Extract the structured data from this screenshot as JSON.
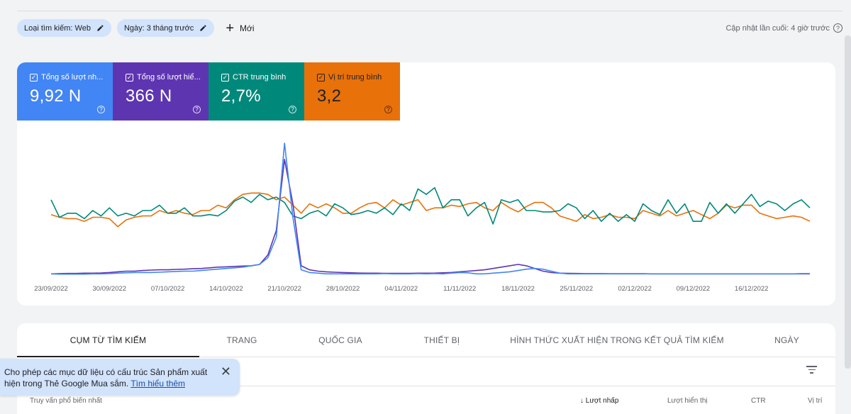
{
  "filters": {
    "search_type": "Loại tìm kiếm: Web",
    "date": "Ngày: 3 tháng trước",
    "new_label": "Mới"
  },
  "last_updated": "Cập nhật lần cuối: 4 giờ trước",
  "metrics": [
    {
      "label": "Tổng số lượt nh...",
      "value": "9,92 N",
      "color": "#4285f4"
    },
    {
      "label": "Tổng số lượt hiể...",
      "value": "366 N",
      "color": "#5e35b1"
    },
    {
      "label": "CTR trung bình",
      "value": "2,7%",
      "color": "#00897b"
    },
    {
      "label": "Vị trí trung bình",
      "value": "3,2",
      "color": "#e8710a"
    }
  ],
  "chart_data": {
    "type": "line",
    "x_tick_labels": [
      "23/09/2022",
      "30/09/2022",
      "07/10/2022",
      "14/10/2022",
      "21/10/2022",
      "28/10/2022",
      "04/11/2022",
      "11/11/2022",
      "18/11/2022",
      "25/11/2022",
      "02/12/2022",
      "09/12/2022",
      "16/12/2022"
    ],
    "x_start": "2022-09-23",
    "y_axis_labels_shown": false,
    "gridlines": false,
    "series": [
      {
        "name": "Tổng số lượt nh...",
        "color": "#4285f4",
        "values": [
          0.03,
          0.028,
          0.028,
          0.028,
          0.028,
          0.03,
          0.03,
          0.032,
          0.035,
          0.038,
          0.04,
          0.04,
          0.04,
          0.042,
          0.045,
          0.048,
          0.05,
          0.05,
          0.055,
          0.06,
          0.065,
          0.07,
          0.075,
          0.08,
          0.09,
          0.1,
          0.15,
          0.3,
          1.0,
          0.45,
          0.06,
          0.04,
          0.035,
          0.03,
          0.03,
          0.03,
          0.03,
          0.03,
          0.03,
          0.03,
          0.032,
          0.03,
          0.03,
          0.03,
          0.032,
          0.03,
          0.032,
          0.03,
          0.035,
          0.04,
          0.038,
          0.03,
          0.03,
          0.035,
          0.04,
          0.045,
          0.055,
          0.065,
          0.07,
          0.065,
          0.05,
          0.035,
          0.03,
          0.03,
          0.03,
          0.03,
          0.03,
          0.03,
          0.03,
          0.03,
          0.03,
          0.03,
          0.03,
          0.03,
          0.03,
          0.03,
          0.03,
          0.03,
          0.03,
          0.03,
          0.03,
          0.03,
          0.03,
          0.03,
          0.03,
          0.03,
          0.03,
          0.03,
          0.03,
          0.03,
          0.032,
          0.032
        ]
      },
      {
        "name": "Tổng số lượt hiể...",
        "color": "#5e35b1",
        "values": [
          0.03,
          0.032,
          0.033,
          0.033,
          0.035,
          0.035,
          0.037,
          0.04,
          0.045,
          0.05,
          0.05,
          0.055,
          0.058,
          0.06,
          0.06,
          0.063,
          0.065,
          0.068,
          0.07,
          0.075,
          0.08,
          0.082,
          0.085,
          0.088,
          0.09,
          0.1,
          0.17,
          0.35,
          0.88,
          0.55,
          0.09,
          0.06,
          0.05,
          0.045,
          0.042,
          0.04,
          0.038,
          0.036,
          0.035,
          0.035,
          0.034,
          0.034,
          0.034,
          0.034,
          0.035,
          0.035,
          0.036,
          0.038,
          0.04,
          0.045,
          0.05,
          0.055,
          0.06,
          0.07,
          0.08,
          0.09,
          0.1,
          0.09,
          0.07,
          0.05,
          0.04,
          0.035,
          0.034,
          0.033,
          0.032,
          0.032,
          0.032,
          0.031,
          0.031,
          0.031,
          0.031,
          0.031,
          0.03,
          0.03,
          0.03,
          0.03,
          0.03,
          0.03,
          0.03,
          0.03,
          0.03,
          0.03,
          0.03,
          0.03,
          0.03,
          0.03,
          0.03,
          0.03,
          0.03,
          0.03,
          0.03,
          0.03
        ]
      },
      {
        "name": "CTR trung bình",
        "color": "#00897b",
        "values": [
          0.58,
          0.45,
          0.48,
          0.48,
          0.44,
          0.5,
          0.46,
          0.52,
          0.46,
          0.48,
          0.46,
          0.5,
          0.5,
          0.54,
          0.48,
          0.48,
          0.52,
          0.46,
          0.46,
          0.47,
          0.46,
          0.5,
          0.57,
          0.6,
          0.56,
          0.62,
          0.58,
          0.6,
          0.56,
          0.46,
          0.44,
          0.48,
          0.5,
          0.46,
          0.55,
          0.52,
          0.47,
          0.48,
          0.5,
          0.48,
          0.52,
          0.47,
          0.55,
          0.5,
          0.66,
          0.62,
          0.67,
          0.52,
          0.58,
          0.58,
          0.46,
          0.52,
          0.56,
          0.4,
          0.58,
          0.56,
          0.58,
          0.5,
          0.5,
          0.49,
          0.49,
          0.5,
          0.55,
          0.52,
          0.44,
          0.5,
          0.42,
          0.48,
          0.42,
          0.47,
          0.42,
          0.55,
          0.5,
          0.47,
          0.58,
          0.48,
          0.55,
          0.42,
          0.42,
          0.56,
          0.48,
          0.55,
          0.48,
          0.55,
          0.62,
          0.53,
          0.57,
          0.55,
          0.5,
          0.55,
          0.58,
          0.52
        ]
      },
      {
        "name": "Vị trí trung bình",
        "color": "#e8710a",
        "values": [
          0.47,
          0.45,
          0.44,
          0.44,
          0.42,
          0.45,
          0.45,
          0.44,
          0.38,
          0.43,
          0.45,
          0.46,
          0.46,
          0.5,
          0.48,
          0.5,
          0.48,
          0.47,
          0.5,
          0.5,
          0.54,
          0.52,
          0.58,
          0.62,
          0.63,
          0.63,
          0.62,
          0.58,
          0.6,
          0.54,
          0.48,
          0.55,
          0.52,
          0.55,
          0.52,
          0.48,
          0.48,
          0.52,
          0.55,
          0.56,
          0.52,
          0.58,
          0.54,
          0.56,
          0.58,
          0.5,
          0.52,
          0.52,
          0.54,
          0.53,
          0.55,
          0.56,
          0.52,
          0.5,
          0.56,
          0.52,
          0.49,
          0.53,
          0.56,
          0.56,
          0.52,
          0.46,
          0.44,
          0.42,
          0.47,
          0.44,
          0.45,
          0.47,
          0.45,
          0.45,
          0.44,
          0.5,
          0.48,
          0.46,
          0.5,
          0.46,
          0.48,
          0.5,
          0.47,
          0.44,
          0.48,
          0.54,
          0.52,
          0.54,
          0.54,
          0.48,
          0.46,
          0.44,
          0.45,
          0.46,
          0.45,
          0.42
        ]
      }
    ]
  },
  "tabs": [
    "Cụm từ tìm kiếm",
    "Trang",
    "Quốc gia",
    "Thiết bị",
    "Hình thức xuất hiện trong kết quả tìm kiếm",
    "Ngày"
  ],
  "table_headers": {
    "query": "Truy vấn phổ biến nhất",
    "clicks": "Lượt nhấp",
    "impressions": "Lượt hiển thị",
    "ctr": "CTR",
    "position": "Vị trí"
  },
  "toast": {
    "text": "Cho phép các mục dữ liệu có cấu trúc Sản phẩm xuất hiện trong Thẻ Google Mua sắm.",
    "link": "Tìm hiểu thêm"
  }
}
